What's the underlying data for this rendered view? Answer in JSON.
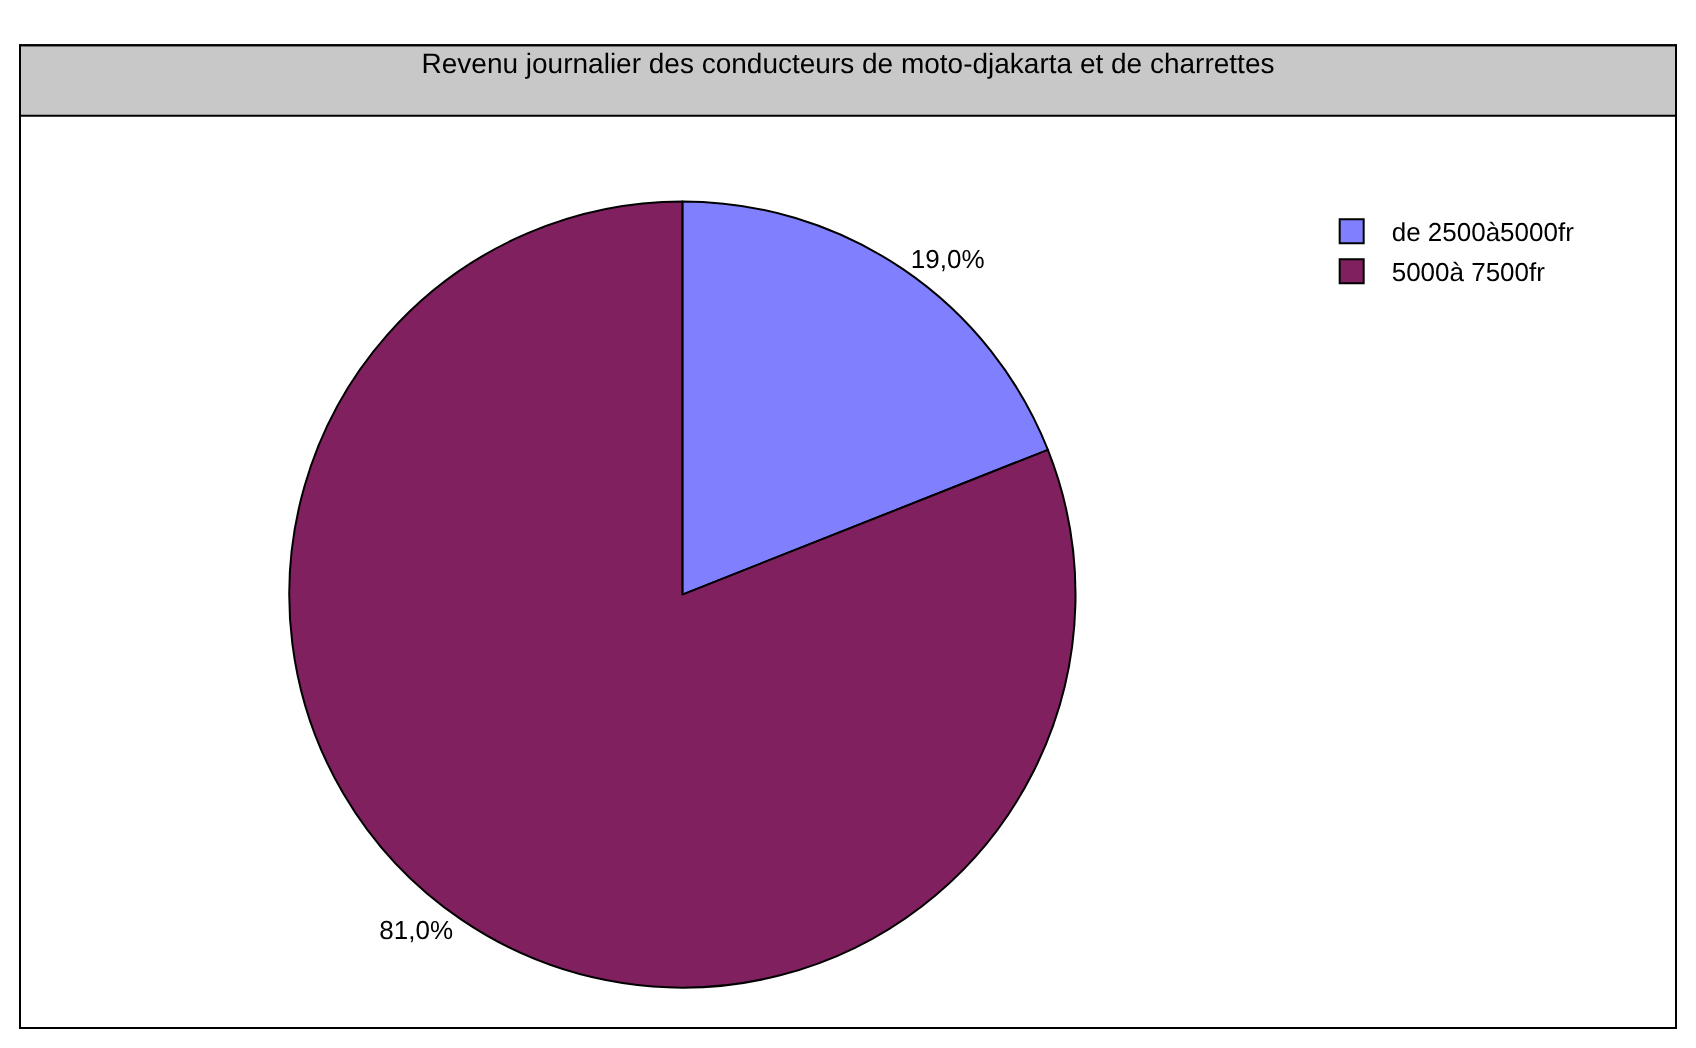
{
  "chart_data": {
    "type": "pie",
    "title": "Revenu journalier des conducteurs de moto-djakarta et de charrettes",
    "categories": [
      "de 2500à5000fr",
      "5000à 7500fr"
    ],
    "values": [
      19,
      81
    ],
    "colors": [
      "#8080ff",
      "#80205f"
    ],
    "value_labels": [
      "19,0%",
      "81,0%"
    ],
    "legend": "top right"
  }
}
